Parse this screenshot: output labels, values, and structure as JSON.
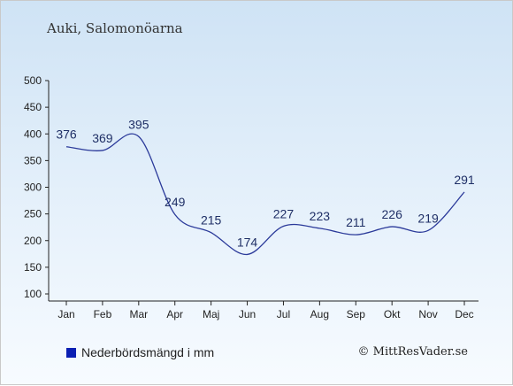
{
  "header": {
    "title": "Auki, Salomonöarna"
  },
  "legend": {
    "label": "Nederbördsmängd i mm",
    "color": "#0b1fb3"
  },
  "credit": {
    "text": "© MittResVader.se"
  },
  "chart_data": {
    "type": "line",
    "categories": [
      "Jan",
      "Feb",
      "Mar",
      "Apr",
      "Maj",
      "Jun",
      "Jul",
      "Aug",
      "Sep",
      "Okt",
      "Nov",
      "Dec"
    ],
    "series": [
      {
        "name": "Nederbördsmängd i mm",
        "values": [
          376,
          369,
          395,
          249,
          215,
          174,
          227,
          223,
          211,
          226,
          219,
          291
        ],
        "color": "#2b3a9a"
      }
    ],
    "ylim": [
      100,
      500
    ],
    "yticks": [
      100,
      150,
      200,
      250,
      300,
      350,
      400,
      450,
      500
    ],
    "grid": false,
    "legend_position": "bottom-left"
  }
}
